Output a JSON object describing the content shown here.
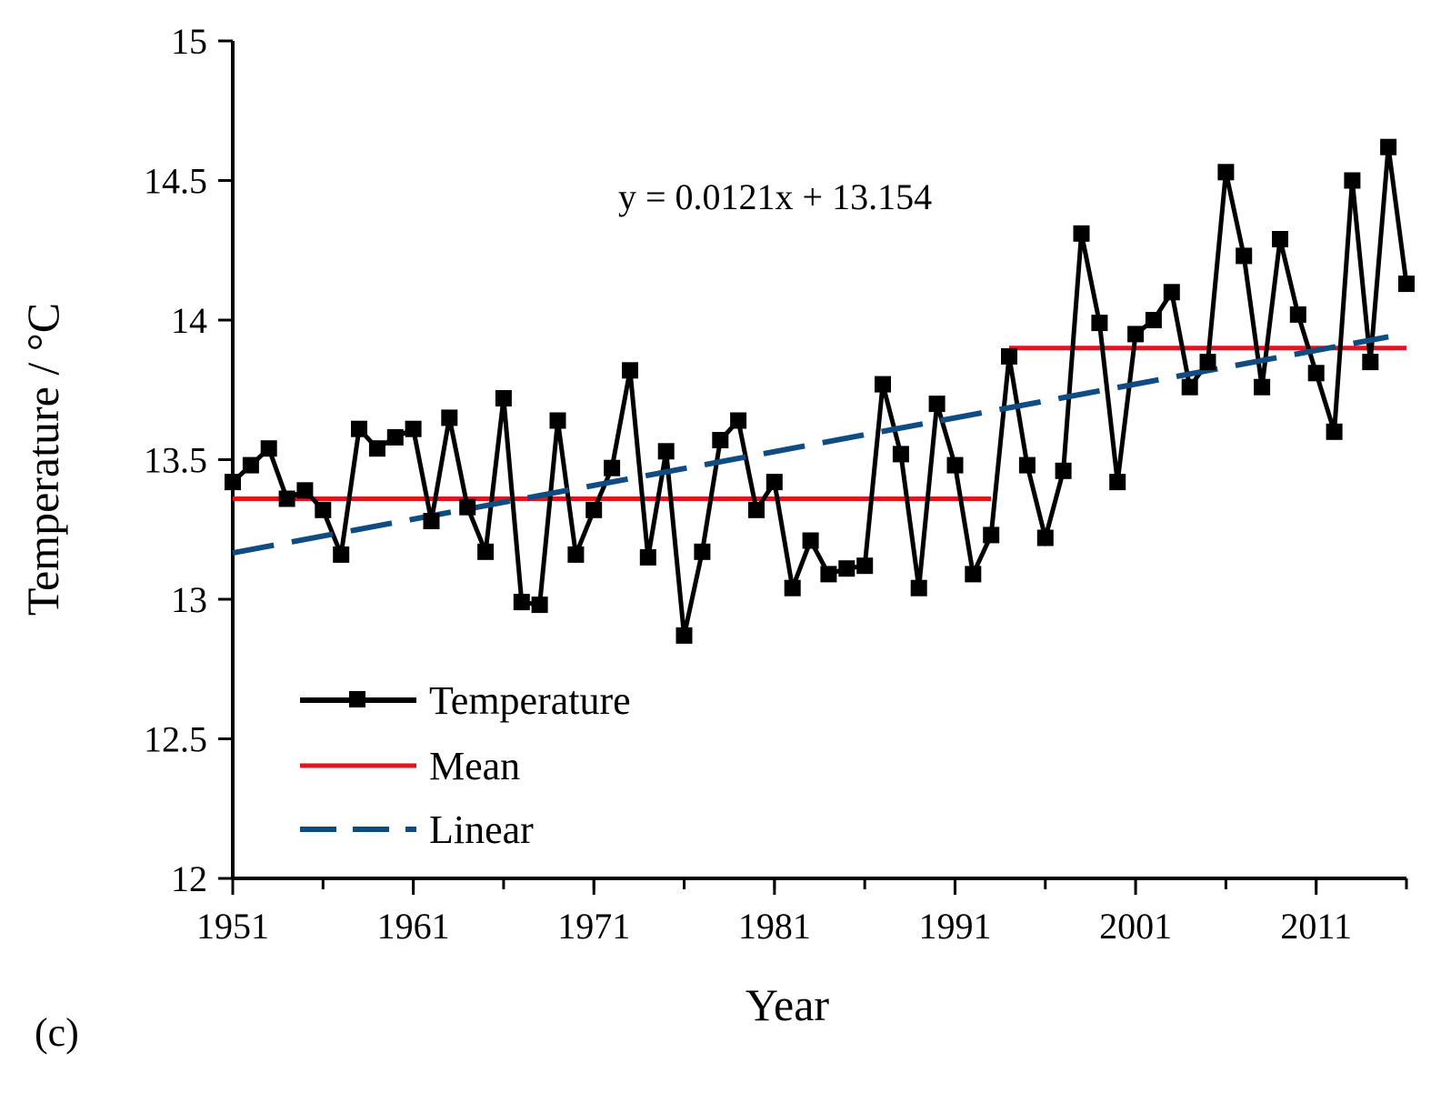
{
  "chart_data": {
    "type": "line",
    "panel_label": "(c)",
    "xlabel": "Year",
    "ylabel": "Temperature / °C",
    "xlim": [
      1951,
      2016
    ],
    "ylim": [
      12,
      15
    ],
    "x_ticks": [
      1951,
      1961,
      1971,
      1981,
      1991,
      2001,
      2011
    ],
    "x_tick_labels": [
      "1951",
      "1961",
      "1971",
      "1981",
      "1991",
      "2001",
      "2011"
    ],
    "y_ticks": [
      12,
      12.5,
      13,
      13.5,
      14,
      14.5,
      15
    ],
    "y_tick_labels": [
      "12",
      "12.5",
      "13",
      "13.5",
      "14",
      "14.5",
      "15"
    ],
    "equation": "y = 0.0121x  + 13.154",
    "legend": {
      "position": "bottom-left",
      "entries": [
        "Temperature",
        "Mean",
        "Linear"
      ]
    },
    "series": [
      {
        "name": "Temperature",
        "style": "solid-with-square-markers",
        "color": "#000000",
        "x": [
          1951,
          1952,
          1953,
          1954,
          1955,
          1956,
          1957,
          1958,
          1959,
          1960,
          1961,
          1962,
          1963,
          1964,
          1965,
          1966,
          1967,
          1968,
          1969,
          1970,
          1971,
          1972,
          1973,
          1974,
          1975,
          1976,
          1977,
          1978,
          1979,
          1980,
          1981,
          1982,
          1983,
          1984,
          1985,
          1986,
          1987,
          1988,
          1989,
          1990,
          1991,
          1992,
          1993,
          1994,
          1995,
          1996,
          1997,
          1998,
          1999,
          2000,
          2001,
          2002,
          2003,
          2004,
          2005,
          2006,
          2007,
          2008,
          2009,
          2010,
          2011,
          2012,
          2013,
          2014,
          2015,
          2016
        ],
        "values": [
          13.42,
          13.48,
          13.54,
          13.36,
          13.39,
          13.32,
          13.16,
          13.61,
          13.54,
          13.58,
          13.61,
          13.28,
          13.65,
          13.33,
          13.17,
          13.72,
          12.99,
          12.98,
          13.64,
          13.16,
          13.32,
          13.47,
          13.82,
          13.15,
          13.53,
          12.87,
          13.17,
          13.57,
          13.64,
          13.32,
          13.42,
          13.04,
          13.21,
          13.09,
          13.11,
          13.12,
          13.77,
          13.52,
          13.04,
          13.7,
          13.48,
          13.09,
          13.23,
          13.87,
          13.48,
          13.22,
          13.46,
          14.31,
          13.99,
          13.42,
          13.95,
          14.0,
          14.1,
          13.76,
          13.85,
          14.53,
          14.23,
          13.76,
          14.29,
          14.02,
          13.81,
          13.6,
          14.5,
          13.85,
          14.62,
          14.13
        ]
      },
      {
        "name": "Mean",
        "style": "solid",
        "color": "#e0161e",
        "segments": [
          {
            "x": [
              1951,
              1993
            ],
            "value": 13.36
          },
          {
            "x": [
              1994,
              2016
            ],
            "value": 13.9
          }
        ]
      },
      {
        "name": "Linear",
        "style": "dashed",
        "color": "#0f4c81",
        "slope": 0.0121,
        "intercept": 13.154,
        "x_start_index": 1,
        "x": [
          1951,
          2015
        ],
        "values": [
          13.166,
          13.94
        ]
      }
    ]
  }
}
